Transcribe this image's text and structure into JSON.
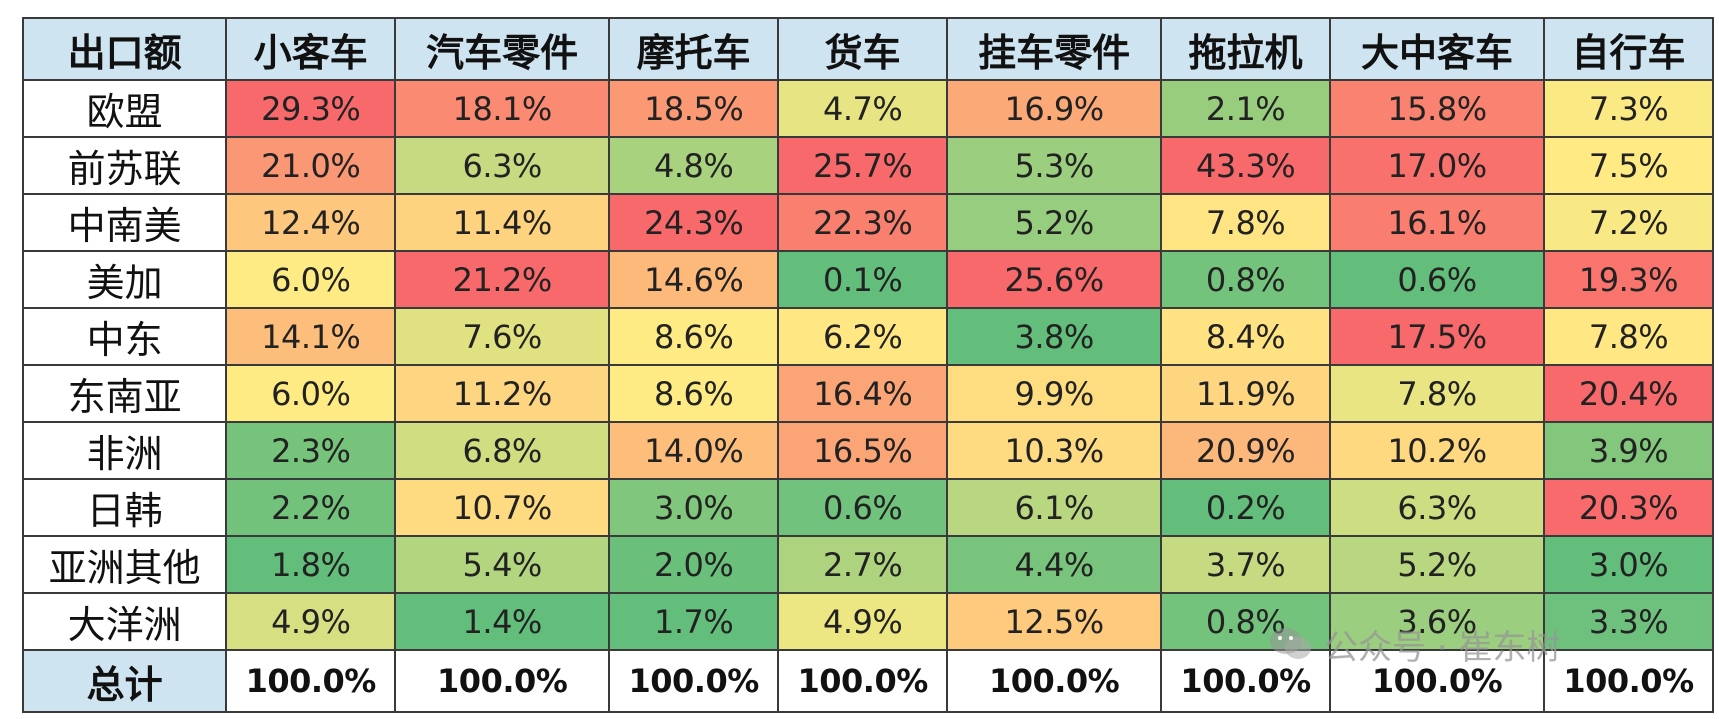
{
  "chart_data": {
    "type": "heatmap",
    "corner_label": "出口额",
    "columns": [
      "小客车",
      "汽车零件",
      "摩托车",
      "货车",
      "挂车零件",
      "拖拉机",
      "大中客车",
      "自行车"
    ],
    "rows": [
      "欧盟",
      "前苏联",
      "中南美",
      "美加",
      "中东",
      "东南亚",
      "非洲",
      "日韩",
      "亚洲其他",
      "大洋洲"
    ],
    "values": [
      [
        29.3,
        18.1,
        18.5,
        4.7,
        16.9,
        2.1,
        15.8,
        7.3
      ],
      [
        21.0,
        6.3,
        4.8,
        25.7,
        5.3,
        43.3,
        17.0,
        7.5
      ],
      [
        12.4,
        11.4,
        24.3,
        22.3,
        5.2,
        7.8,
        16.1,
        7.2
      ],
      [
        6.0,
        21.2,
        14.6,
        0.1,
        25.6,
        0.8,
        0.6,
        19.3
      ],
      [
        14.1,
        7.6,
        8.6,
        6.2,
        3.8,
        8.4,
        17.5,
        7.8
      ],
      [
        6.0,
        11.2,
        8.6,
        16.4,
        9.9,
        11.9,
        7.8,
        20.4
      ],
      [
        2.3,
        6.8,
        14.0,
        16.5,
        10.3,
        20.9,
        10.2,
        3.9
      ],
      [
        2.2,
        10.7,
        3.0,
        0.6,
        6.1,
        0.2,
        6.3,
        20.3
      ],
      [
        1.8,
        5.4,
        2.0,
        2.7,
        4.4,
        3.7,
        5.2,
        3.0
      ],
      [
        4.9,
        1.4,
        1.7,
        4.9,
        12.5,
        0.8,
        3.6,
        3.3
      ]
    ],
    "value_suffix": "%",
    "total_label": "总计",
    "totals": [
      "100.0%",
      "100.0%",
      "100.0%",
      "100.0%",
      "100.0%",
      "100.0%",
      "100.0%",
      "100.0%"
    ],
    "color_scale": {
      "low": "#63be7b",
      "mid": "#ffeb84",
      "high": "#f8696b",
      "scope": "per-column"
    },
    "header_bg": "#cfe4f1"
  },
  "watermark": {
    "icon": "wechat-icon",
    "text": "公众号 · 崔东树"
  }
}
